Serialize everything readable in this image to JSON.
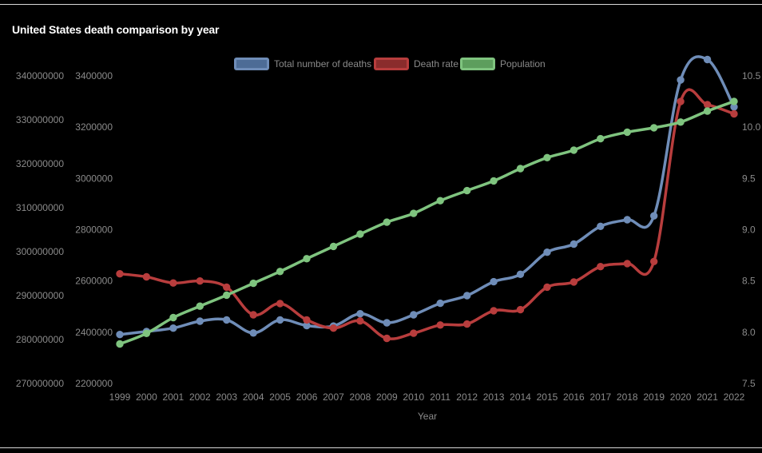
{
  "title": "United States death comparison by year",
  "legend": [
    {
      "label": "Total number of deaths",
      "border": "#6f8db8",
      "fill": "#4d6c96"
    },
    {
      "label": "Death rate",
      "border": "#b83d3d",
      "fill": "#8a2c2c"
    },
    {
      "label": "Population",
      "border": "#7fc47f",
      "fill": "#5d9e5d"
    }
  ],
  "chart_data": {
    "type": "line",
    "xlabel": "Year",
    "x": [
      "1999",
      "2000",
      "2001",
      "2002",
      "2003",
      "2004",
      "2005",
      "2006",
      "2007",
      "2008",
      "2009",
      "2010",
      "2011",
      "2012",
      "2013",
      "2014",
      "2015",
      "2016",
      "2017",
      "2018",
      "2019",
      "2020",
      "2021",
      "2022"
    ],
    "axes": {
      "population_axis": {
        "side": "left-outer",
        "min": 270000000,
        "max": 340000000,
        "step": 10000000,
        "ticks": [
          "340000000",
          "330000000",
          "320000000",
          "310000000",
          "300000000",
          "290000000",
          "280000000",
          "270000000"
        ]
      },
      "deaths_axis": {
        "side": "left-inner",
        "min": 2200000,
        "max": 3400000,
        "step": 200000,
        "ticks": [
          "3400000",
          "3200000",
          "3000000",
          "2800000",
          "2600000",
          "2400000",
          "2200000"
        ]
      },
      "rate_axis": {
        "side": "right",
        "min": 7.5,
        "max": 10.5,
        "step": 0.5,
        "ticks": [
          "10.5",
          "10.0",
          "9.5",
          "9.0",
          "8.5",
          "8.0",
          "7.5"
        ]
      }
    },
    "series": [
      {
        "name": "Total number of deaths",
        "axis": "deaths_axis",
        "color": "#6f8db8",
        "values": [
          2391000,
          2403000,
          2416000,
          2443000,
          2448000,
          2397000,
          2448000,
          2426000,
          2424000,
          2472000,
          2437000,
          2468000,
          2513000,
          2543000,
          2597000,
          2626000,
          2712000,
          2744000,
          2813000,
          2839000,
          2854000,
          3384000,
          3464000,
          3279000
        ]
      },
      {
        "name": "Death rate",
        "axis": "rate_axis",
        "color": "#b83d3d",
        "values": [
          8.57,
          8.54,
          8.48,
          8.5,
          8.44,
          8.17,
          8.28,
          8.12,
          8.04,
          8.11,
          7.94,
          7.99,
          8.07,
          8.08,
          8.21,
          8.22,
          8.44,
          8.49,
          8.64,
          8.67,
          8.69,
          10.25,
          10.22,
          10.13
        ]
      },
      {
        "name": "Population",
        "axis": "population_axis",
        "color": "#7fc47f",
        "values": [
          279000000,
          281400000,
          285000000,
          287600000,
          290100000,
          292800000,
          295500000,
          298400000,
          301200000,
          304000000,
          306700000,
          308700000,
          311600000,
          313900000,
          316100000,
          318900000,
          321400000,
          323100000,
          325700000,
          327200000,
          328200000,
          329500000,
          332000000,
          334200000
        ]
      }
    ],
    "grid": false,
    "legend_position": "top"
  }
}
